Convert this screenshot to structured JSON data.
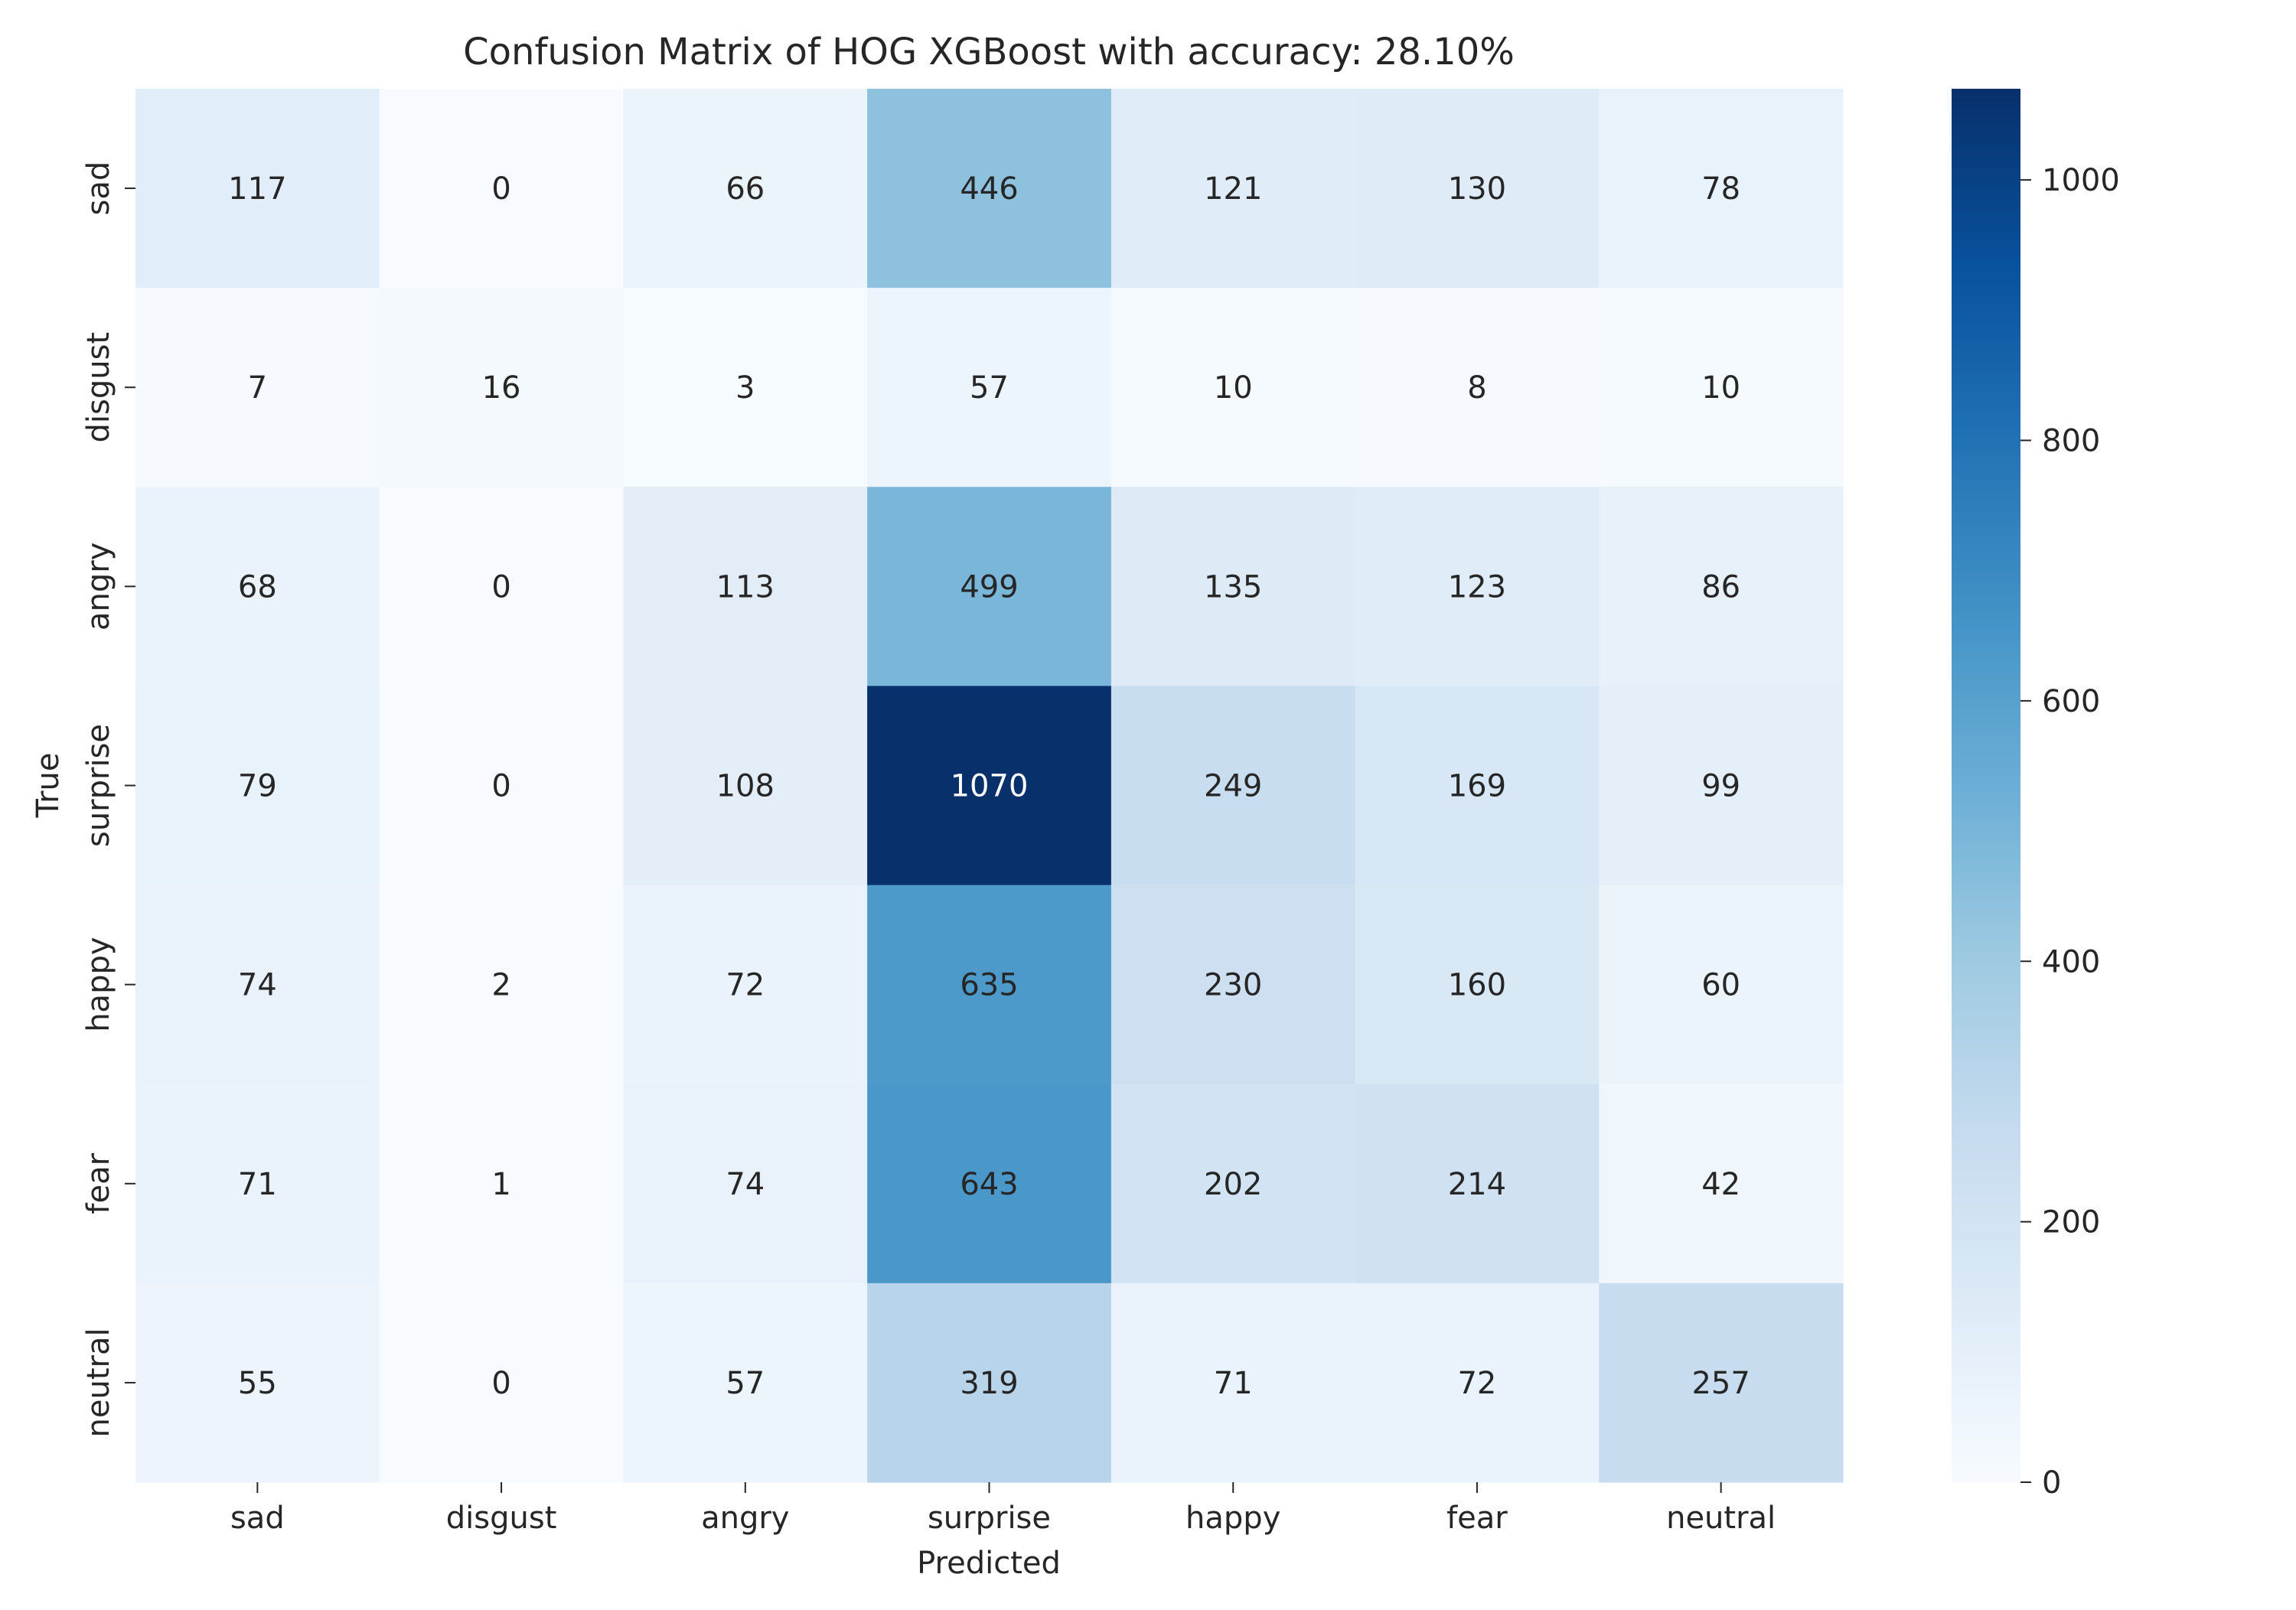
{
  "chart_data": {
    "type": "heatmap",
    "title": "Confusion Matrix of HOG XGBoost with accuracy: 28.10%",
    "xlabel": "Predicted",
    "ylabel": "True",
    "x_categories": [
      "sad",
      "disgust",
      "angry",
      "surprise",
      "happy",
      "fear",
      "neutral"
    ],
    "y_categories": [
      "sad",
      "disgust",
      "angry",
      "surprise",
      "happy",
      "fear",
      "neutral"
    ],
    "values": [
      [
        117,
        0,
        66,
        446,
        121,
        130,
        78
      ],
      [
        7,
        16,
        3,
        57,
        10,
        8,
        10
      ],
      [
        68,
        0,
        113,
        499,
        135,
        123,
        86
      ],
      [
        79,
        0,
        108,
        1070,
        249,
        169,
        99
      ],
      [
        74,
        2,
        72,
        635,
        230,
        160,
        60
      ],
      [
        71,
        1,
        74,
        643,
        202,
        214,
        42
      ],
      [
        55,
        0,
        57,
        319,
        71,
        72,
        257
      ]
    ],
    "colormap": "Blues",
    "colorbar": {
      "range": [
        0,
        1070
      ],
      "ticks": [
        0,
        200,
        400,
        600,
        800,
        1000
      ]
    },
    "grid": false
  }
}
